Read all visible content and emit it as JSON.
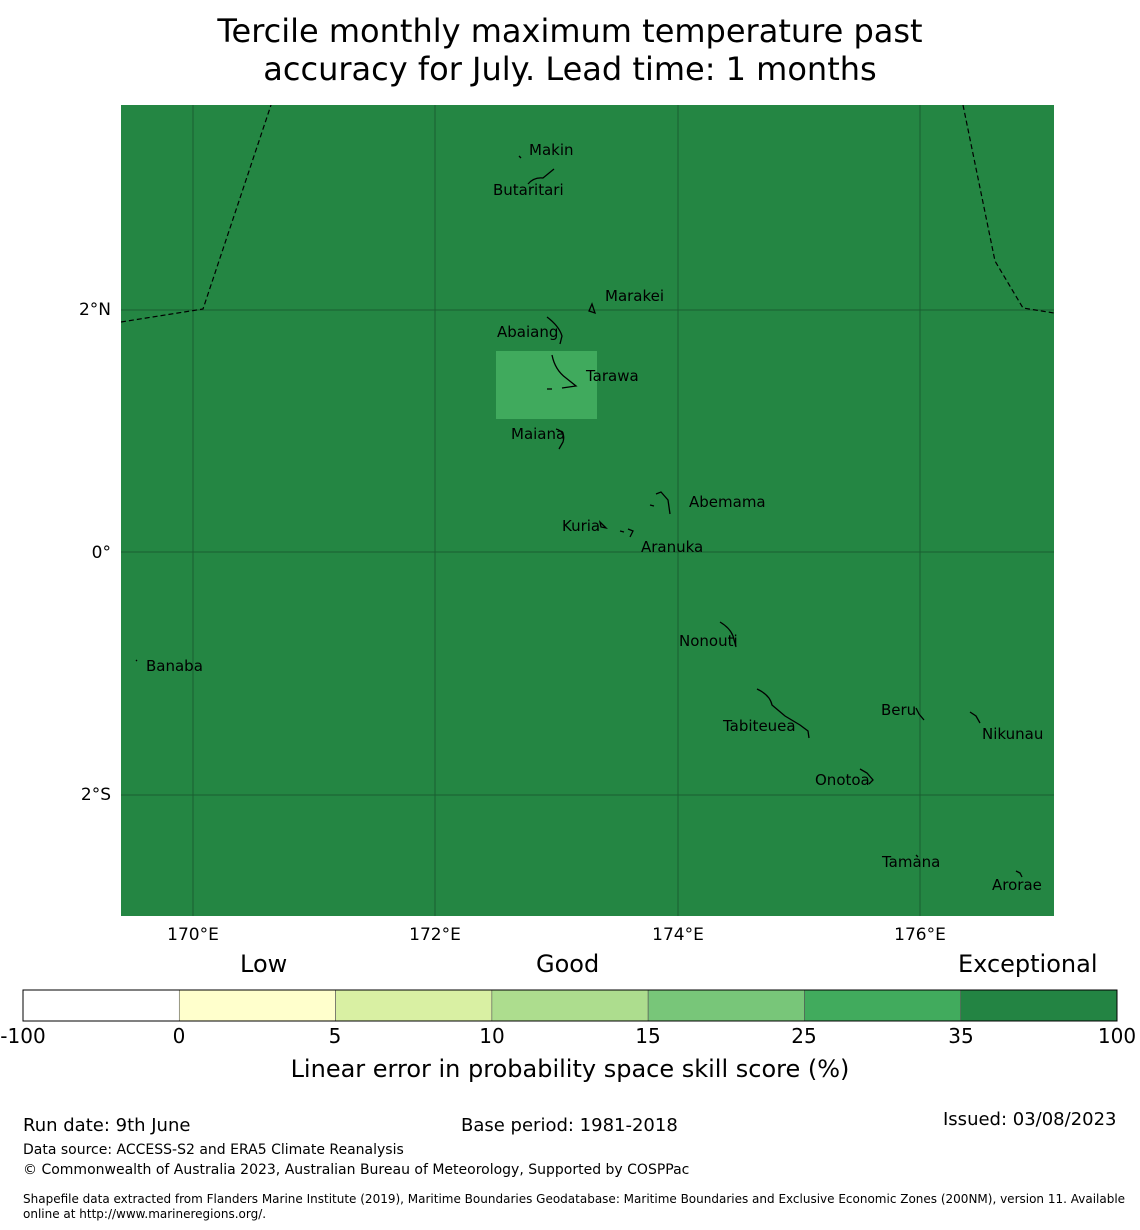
{
  "title_line1": "Tercile monthly maximum temperature past",
  "title_line2": "accuracy for July. Lead time: 1 months",
  "map": {
    "background_color": "#248643",
    "highlight_color": "#40aa5d",
    "grid_color": "#1a5e30",
    "lat_labels": [
      "2°N",
      "0°",
      "2°S"
    ],
    "lon_labels": [
      "170°E",
      "172°E",
      "174°E",
      "176°E"
    ],
    "places": [
      "Makin",
      "Butaritari",
      "Marakei",
      "Abaiang",
      "Tarawa",
      "Maiana",
      "Abemama",
      "Kuria",
      "Aranuka",
      "Nonouti",
      "Banaba",
      "Beru",
      "Tabiteuea",
      "Nikunau",
      "Onotoa",
      "Tamana",
      "Arorae"
    ]
  },
  "colorbar": {
    "category_labels": [
      "Low",
      "Good",
      "Exceptional"
    ],
    "ticks": [
      "-100",
      "0",
      "5",
      "10",
      "15",
      "25",
      "35",
      "100"
    ],
    "colors": [
      "#ffffff",
      "#ffffcc",
      "#d9f0a3",
      "#addd8e",
      "#78c679",
      "#41ab5d",
      "#238443"
    ],
    "title": "Linear error in probability space skill score (%)"
  },
  "footer": {
    "run_date": "Run date: 9th June",
    "base_period": "Base period: 1981-2018",
    "issued": "Issued: 03/08/2023",
    "data_source": "Data source: ACCESS-S2 and ERA5 Climate Reanalysis",
    "copyright": "© Commonwealth of Australia 2023, Australian Bureau of Meteorology, Supported by COSPPac",
    "shapefile_line1": "Shapefile data extracted from Flanders Marine Institute (2019), Maritime Boundaries Geodatabase: Maritime Boundaries and Exclusive Economic Zones (200NM), version 11. Available",
    "shapefile_line2": "online at http://www.marineregions.org/."
  }
}
